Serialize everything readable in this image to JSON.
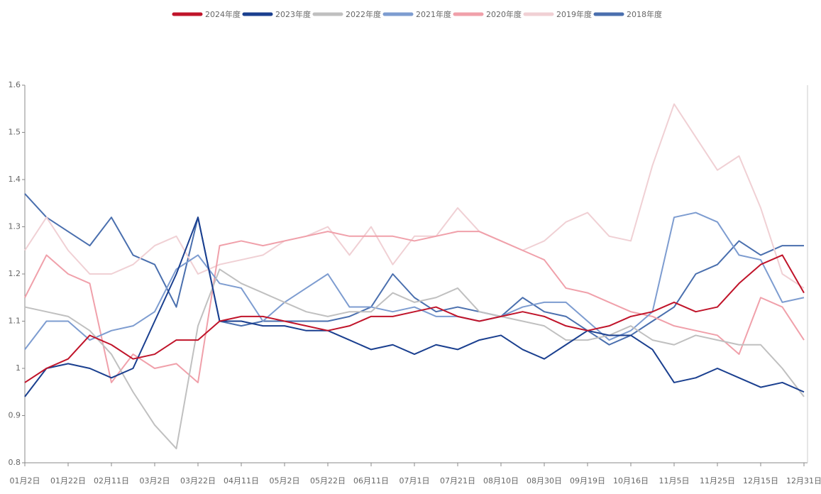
{
  "chart_data": {
    "type": "line",
    "categories": [
      "01月2日",
      null,
      "01月22日",
      null,
      "02月11日",
      null,
      "03月2日",
      null,
      "03月22日",
      null,
      "04月11日",
      null,
      "05月2日",
      null,
      "05月22日",
      null,
      "06月11日",
      null,
      "07月1日",
      null,
      "07月21日",
      null,
      "08月10日",
      null,
      "08月30日",
      null,
      "09月19日",
      null,
      "10月16日",
      null,
      "11月5日",
      null,
      "11月25日",
      null,
      "12月15日",
      null,
      "12月31日"
    ],
    "series": [
      {
        "name": "2024年度",
        "color": "#c0142a",
        "values": [
          0.97,
          1.0,
          1.02,
          1.07,
          1.05,
          1.02,
          1.03,
          1.06,
          1.06,
          1.1,
          1.11,
          1.11,
          1.1,
          1.09,
          1.08,
          1.09,
          1.11,
          1.11,
          1.12,
          1.13,
          1.11,
          1.1,
          1.11,
          1.12,
          1.11,
          1.09,
          1.08,
          1.09,
          1.11,
          1.12,
          1.14,
          1.12,
          1.13,
          1.18,
          1.22,
          1.24,
          1.16
        ]
      },
      {
        "name": "2023年度",
        "color": "#1a3f8f",
        "values": [
          0.94,
          1.0,
          1.01,
          1.0,
          0.98,
          1.0,
          1.1,
          1.2,
          1.32,
          1.1,
          1.1,
          1.09,
          1.09,
          1.08,
          1.08,
          1.06,
          1.04,
          1.05,
          1.03,
          1.05,
          1.04,
          1.06,
          1.07,
          1.04,
          1.02,
          1.05,
          1.08,
          1.07,
          1.07,
          1.04,
          0.97,
          0.98,
          1.0,
          0.98,
          0.96,
          0.97,
          0.95
        ]
      },
      {
        "name": "2022年度",
        "color": "#c0c0c0",
        "values": [
          1.13,
          1.12,
          1.11,
          1.08,
          1.03,
          0.95,
          0.88,
          0.83,
          1.09,
          1.21,
          1.18,
          1.16,
          1.14,
          1.12,
          1.11,
          1.12,
          1.12,
          1.16,
          1.14,
          1.15,
          1.17,
          1.12,
          1.11,
          1.1,
          1.09,
          1.06,
          1.06,
          1.07,
          1.09,
          1.06,
          1.05,
          1.07,
          1.06,
          1.05,
          1.05,
          1.0,
          0.94
        ]
      },
      {
        "name": "2021年度",
        "color": "#7d9cd0",
        "values": [
          1.04,
          1.1,
          1.1,
          1.06,
          1.08,
          1.09,
          1.12,
          1.21,
          1.24,
          1.18,
          1.17,
          1.1,
          1.14,
          1.17,
          1.2,
          1.13,
          1.13,
          1.12,
          1.13,
          1.11,
          1.11,
          1.1,
          1.11,
          1.13,
          1.14,
          1.14,
          1.1,
          1.06,
          1.08,
          1.12,
          1.32,
          1.33,
          1.31,
          1.24,
          1.23,
          1.14,
          1.15
        ]
      },
      {
        "name": "2020年度",
        "color": "#f0a0aa",
        "values": [
          1.15,
          1.24,
          1.2,
          1.18,
          0.97,
          1.03,
          1.0,
          1.01,
          0.97,
          1.26,
          1.27,
          1.26,
          1.27,
          1.28,
          1.29,
          1.28,
          1.28,
          1.28,
          1.27,
          1.28,
          1.29,
          1.29,
          1.27,
          1.25,
          1.23,
          1.17,
          1.16,
          1.14,
          1.12,
          1.11,
          1.09,
          1.08,
          1.07,
          1.03,
          1.15,
          1.13,
          1.06
        ]
      },
      {
        "name": "2019年度",
        "color": "#f0d0d4",
        "values": [
          1.25,
          1.32,
          1.25,
          1.2,
          1.2,
          1.22,
          1.26,
          1.28,
          1.2,
          1.22,
          1.23,
          1.24,
          1.27,
          1.28,
          1.3,
          1.24,
          1.3,
          1.22,
          1.28,
          1.28,
          1.34,
          1.29,
          1.27,
          1.25,
          1.27,
          1.31,
          1.33,
          1.28,
          1.27,
          1.43,
          1.56,
          1.49,
          1.42,
          1.45,
          1.34,
          1.2,
          1.17
        ]
      },
      {
        "name": "2018年度",
        "color": "#4a6fae",
        "values": [
          1.37,
          1.32,
          1.29,
          1.26,
          1.32,
          1.24,
          1.22,
          1.13,
          1.32,
          1.1,
          1.09,
          1.1,
          1.1,
          1.1,
          1.1,
          1.11,
          1.13,
          1.2,
          1.15,
          1.12,
          1.13,
          1.12,
          1.11,
          1.15,
          1.12,
          1.11,
          1.08,
          1.05,
          1.07,
          1.1,
          1.13,
          1.2,
          1.22,
          1.27,
          1.24,
          1.26,
          1.26
        ]
      }
    ],
    "ylim": [
      0.8,
      1.6
    ],
    "yticks": [
      0.8,
      0.9,
      1,
      1.1,
      1.2,
      1.3,
      1.4,
      1.5,
      1.6
    ],
    "legend": "top"
  }
}
